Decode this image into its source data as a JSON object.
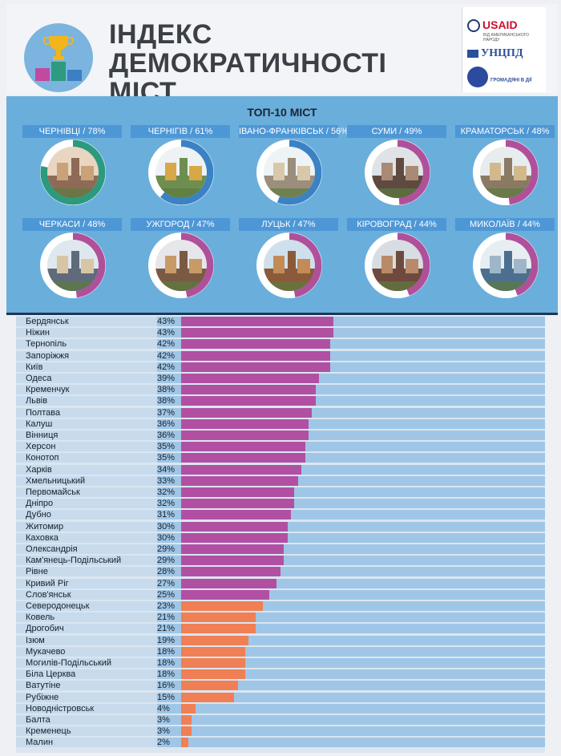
{
  "header": {
    "title_line1": "ІНДЕКС",
    "title_line2": "ДЕМОКРАТИЧНОСТІ МІСТ",
    "partners": {
      "usaid": "USAID",
      "usaid_sub": "ВІД АМЕРИКАНСЬКОГО НАРОДУ",
      "ucpd": "УНЦПД",
      "gromadyani": "ГРОМАДЯНІ В ДІЇ"
    }
  },
  "top10": {
    "title": "ТОП-10 МІСТ",
    "cities": [
      {
        "label": "ЧЕРНІВЦІ / 78%",
        "value": 78,
        "color": "#2b9a7e"
      },
      {
        "label": "ЧЕРНІГІВ / 61%",
        "value": 61,
        "color": "#3a82c4"
      },
      {
        "label": "ІВАНО-ФРАНКІВСЬК / 56%",
        "value": 56,
        "color": "#3a82c4"
      },
      {
        "label": "СУМИ / 49%",
        "value": 49,
        "color": "#b0509a"
      },
      {
        "label": "КРАМАТОРСЬК / 48%",
        "value": 48,
        "color": "#b0509a"
      },
      {
        "label": "ЧЕРКАСИ / 48%",
        "value": 48,
        "color": "#b0509a"
      },
      {
        "label": "УЖГОРОД / 47%",
        "value": 47,
        "color": "#b0509a"
      },
      {
        "label": "ЛУЦЬК / 47%",
        "value": 47,
        "color": "#b0509a"
      },
      {
        "label": "КІРОВОГРАД / 44%",
        "value": 44,
        "color": "#b0509a"
      },
      {
        "label": "МИКОЛАЇВ / 44%",
        "value": 44,
        "color": "#b0509a"
      }
    ]
  },
  "chart_data": {
    "type": "bar",
    "orientation": "horizontal",
    "xlim": [
      0,
      100
    ],
    "colors": {
      "high": "#b150a3",
      "low": "#f07f55"
    },
    "categories": [
      "Бердянськ",
      "Ніжин",
      "Тернопіль",
      "Запоріжжя",
      "Київ",
      "Одеса",
      "Кременчук",
      "Львів",
      "Полтава",
      "Калуш",
      "Вінниця",
      "Херсон",
      "Конотоп",
      "Харків",
      "Хмельницький",
      "Первомайськ",
      "Дніпро",
      "Дубно",
      "Житомир",
      "Каховка",
      "Олександрія",
      "Кам'янець-Подільський",
      "Рівне",
      "Кривий Ріг",
      "Слов'янськ",
      "Северодонецьк",
      "Ковель",
      "Дрогобич",
      "Ізюм",
      "Мукачево",
      "Могилів-Подільський",
      "Біла Церква",
      "Ватутіне",
      "Рубіжне",
      "Новодністровськ",
      "Балта",
      "Кременець",
      "Малин"
    ],
    "values": [
      43,
      43,
      42,
      42,
      42,
      39,
      38,
      38,
      37,
      36,
      36,
      35,
      35,
      34,
      33,
      32,
      32,
      31,
      30,
      30,
      29,
      29,
      28,
      27,
      25,
      23,
      21,
      21,
      19,
      18,
      18,
      18,
      16,
      15,
      4,
      3,
      3,
      2
    ],
    "labels": [
      "43%",
      "43%",
      "42%",
      "42%",
      "42%",
      "39%",
      "38%",
      "38%",
      "37%",
      "36%",
      "36%",
      "35%",
      "35%",
      "34%",
      "33%",
      "32%",
      "32%",
      "31%",
      "30%",
      "30%",
      "29%",
      "29%",
      "28%",
      "27%",
      "25%",
      "23%",
      "21%",
      "21%",
      "19%",
      "18%",
      "18%",
      "18%",
      "16%",
      "15%",
      "4%",
      "3%",
      "3%",
      "2%"
    ],
    "color_split_index": 25
  }
}
